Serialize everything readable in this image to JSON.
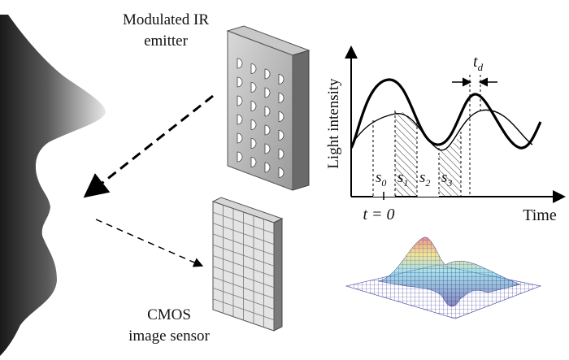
{
  "labels": {
    "emitter_line1": "Modulated IR",
    "emitter_line2": "emitter",
    "sensor_line1": "CMOS",
    "sensor_line2": "image sensor"
  },
  "plot": {
    "ylabel": "Light intensity",
    "xlabel": "Time",
    "t0_label": "t = 0",
    "td_main": "t",
    "td_sub": "d",
    "segments": [
      {
        "main": "s",
        "sub": "0"
      },
      {
        "main": "s",
        "sub": "1"
      },
      {
        "main": "s",
        "sub": "2"
      },
      {
        "main": "s",
        "sub": "3"
      }
    ]
  }
}
